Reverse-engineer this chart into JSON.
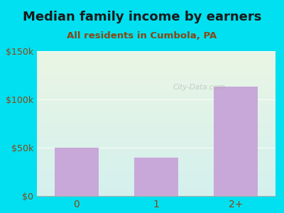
{
  "title": "Median family income by earners",
  "subtitle": "All residents in Cumbola, PA",
  "categories": [
    "0",
    "1",
    "2+"
  ],
  "values": [
    50000,
    40000,
    113000
  ],
  "bar_color": "#c8a8d8",
  "ylim": [
    0,
    150000
  ],
  "yticks": [
    0,
    50000,
    100000,
    150000
  ],
  "ytick_labels": [
    "$0",
    "$50k",
    "$100k",
    "$150k"
  ],
  "bg_outer": "#00e0f0",
  "bg_plot_top": "#eaf6e4",
  "bg_plot_bottom": "#d4f0ee",
  "title_color": "#1a1a1a",
  "subtitle_color": "#8b4513",
  "watermark": "City-Data.com",
  "title_fontsize": 13,
  "subtitle_fontsize": 9.5,
  "tick_color": "#8b4513",
  "tick_fontsize": 9
}
